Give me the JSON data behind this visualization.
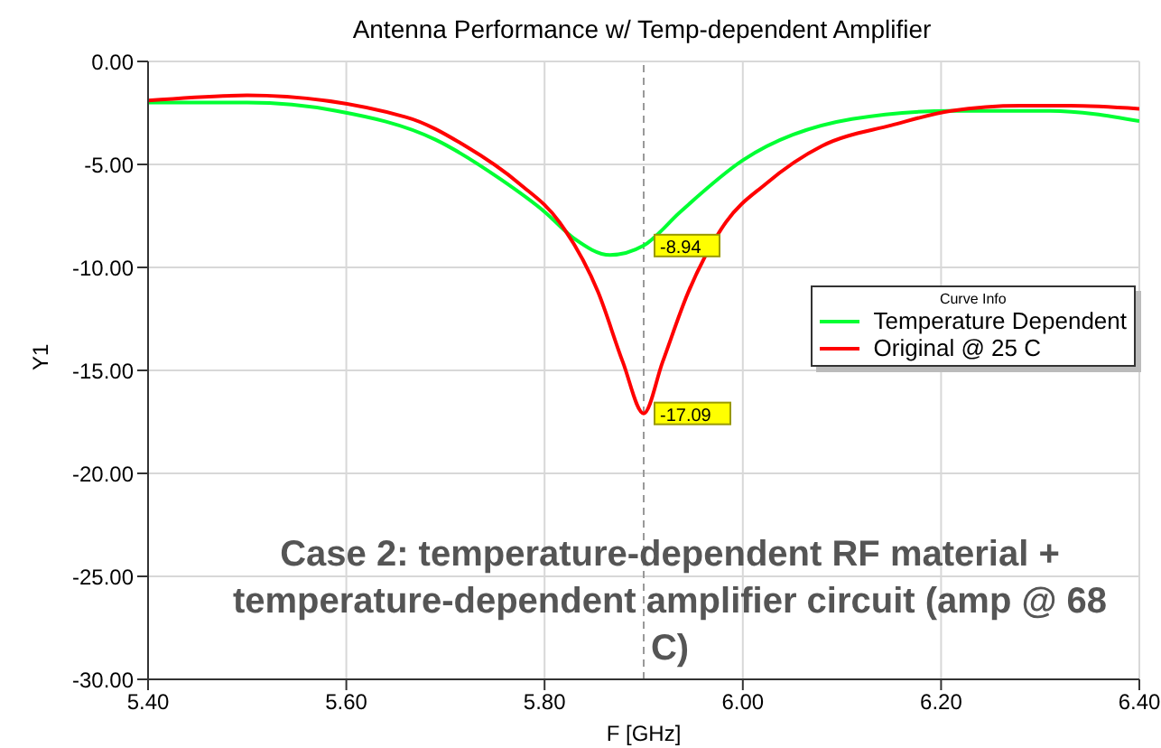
{
  "chart_data": {
    "type": "line",
    "title": "Antenna Performance w/ Temp-dependent Amplifier",
    "xlabel": "F [GHz]",
    "ylabel": "Y1",
    "legend_title": "Curve Info",
    "legend": "right",
    "grid": true,
    "marker": "none",
    "line_style": "solid",
    "xlim": [
      5.4,
      6.4
    ],
    "xticks": [
      {
        "value": 5.4,
        "label": "5.40"
      },
      {
        "value": 5.6,
        "label": "5.60"
      },
      {
        "value": 5.8,
        "label": "5.80"
      },
      {
        "value": 6.0,
        "label": "6.00"
      },
      {
        "value": 6.2,
        "label": "6.20"
      },
      {
        "value": 6.4,
        "label": "6.40"
      }
    ],
    "ylim": [
      -30,
      0
    ],
    "yticks": [
      {
        "value": -30,
        "label": "-30.00"
      },
      {
        "value": -25,
        "label": "-25.00"
      },
      {
        "value": -20,
        "label": "-20.00"
      },
      {
        "value": -15,
        "label": "-15.00"
      },
      {
        "value": -10,
        "label": "-10.00"
      },
      {
        "value": -5,
        "label": "-5.00"
      },
      {
        "value": 0,
        "label": "0.00"
      }
    ],
    "series": [
      {
        "name": "Temperature Dependent",
        "color": "#00ff33",
        "x": [
          5.4,
          5.5,
          5.59,
          5.69,
          5.755,
          5.8,
          5.83,
          5.866,
          5.9,
          5.937,
          6.0,
          6.11,
          6.21,
          6.31,
          6.4
        ],
        "values": [
          -2.0,
          -2.0,
          -2.4,
          -3.8,
          -5.7,
          -7.3,
          -8.6,
          -9.4,
          -8.94,
          -7.3,
          -4.8,
          -2.8,
          -2.4,
          -2.4,
          -2.9
        ]
      },
      {
        "name": "Original @ 25 C",
        "color": "#ff0000",
        "x": [
          5.4,
          5.5,
          5.66,
          5.72,
          5.775,
          5.815,
          5.854,
          5.879,
          5.9,
          5.919,
          5.945,
          5.983,
          6.023,
          6.08,
          6.15,
          6.21,
          6.28,
          6.33,
          6.4
        ],
        "values": [
          -1.9,
          -1.65,
          -2.7,
          -4.1,
          -5.95,
          -7.8,
          -11.2,
          -14.6,
          -17.09,
          -14.6,
          -11.2,
          -7.8,
          -5.95,
          -4.1,
          -3.1,
          -2.4,
          -2.15,
          -2.15,
          -2.3
        ]
      }
    ],
    "ref_lines": [
      {
        "axis": "x",
        "value": 5.9,
        "color": "#999999",
        "line_style": "dashed"
      }
    ],
    "annotations": [
      {
        "text": "-8.94",
        "x": 5.9,
        "y": -8.94
      },
      {
        "text": "-17.09",
        "x": 5.9,
        "y": -17.09
      },
      "Case 2: temperature-dependent RF material + temperature-dependent amplifier circuit (amp @ 68 C)"
    ]
  }
}
